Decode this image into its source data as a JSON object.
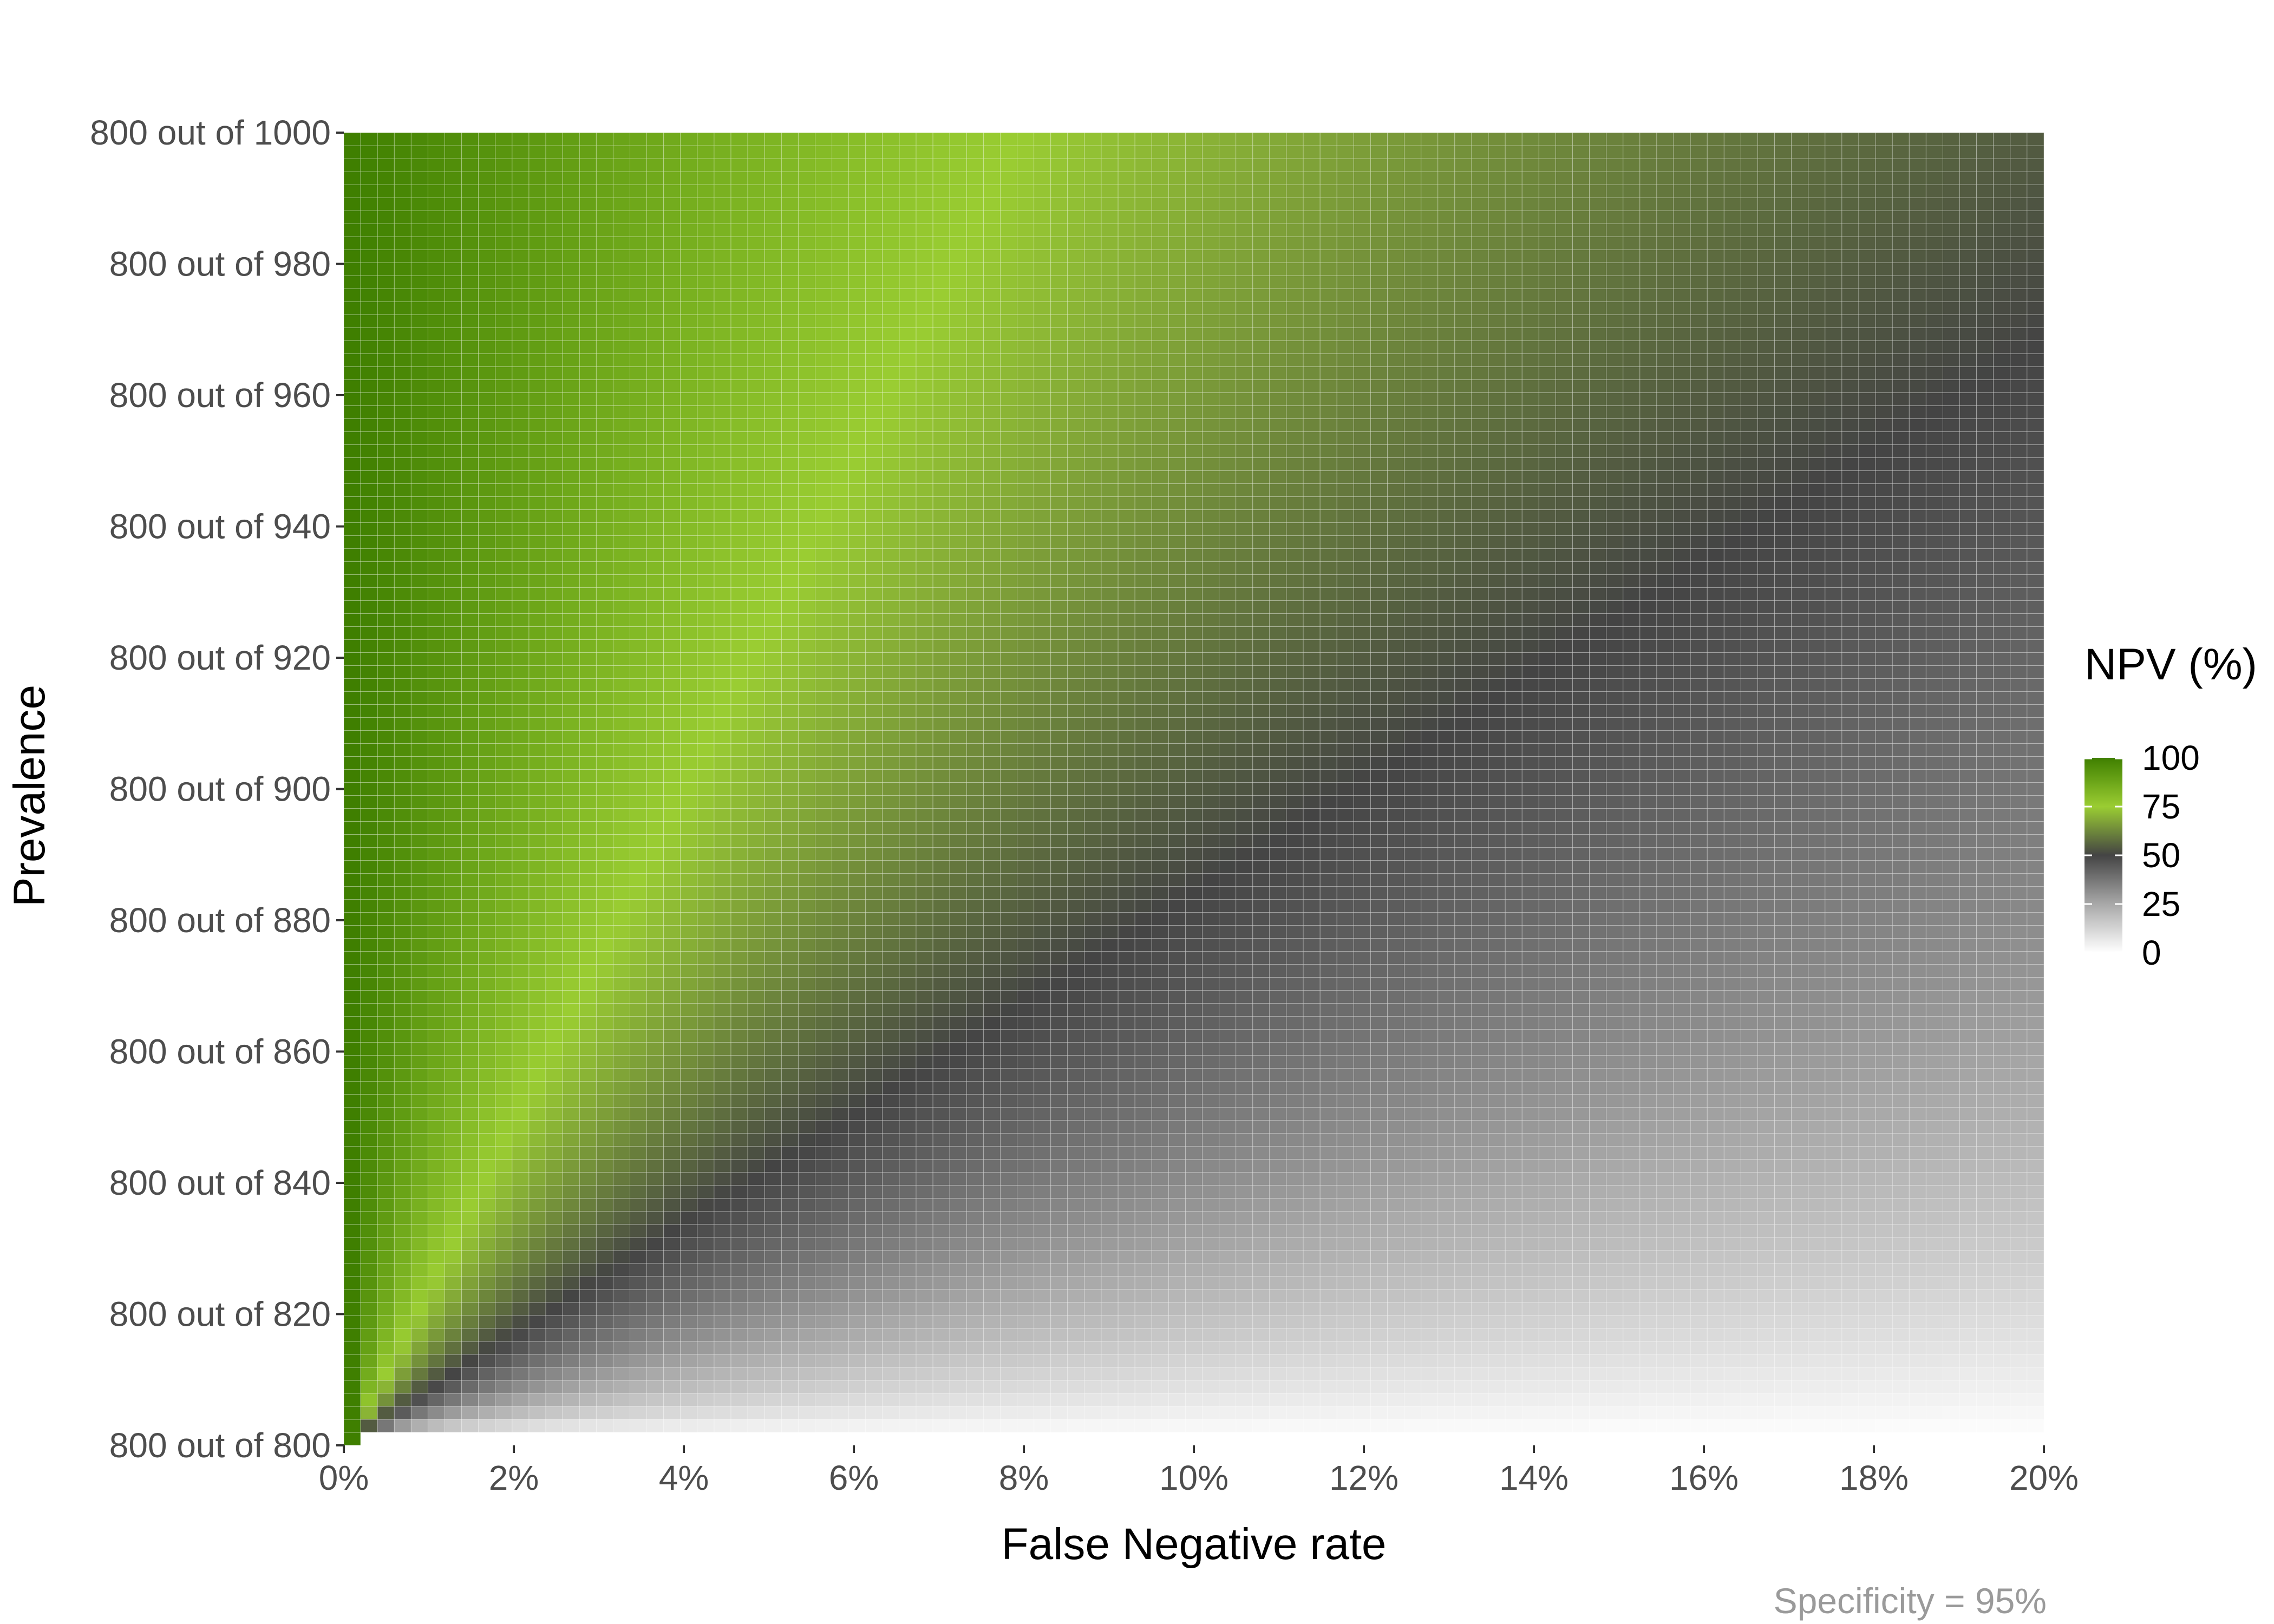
{
  "chart_data": {
    "type": "heatmap",
    "title": "",
    "xlabel": "False Negative rate",
    "ylabel": "Prevalence",
    "caption": "Specificity = 95%",
    "x_ticks": [
      "0%",
      "2%",
      "4%",
      "6%",
      "8%",
      "10%",
      "12%",
      "14%",
      "16%",
      "18%",
      "20%"
    ],
    "y_ticks": [
      "800 out of 800",
      "800 out of 820",
      "800 out of 840",
      "800 out of 860",
      "800 out of 880",
      "800 out of 900",
      "800 out of 920",
      "800 out of 940",
      "800 out of 960",
      "800 out of 980",
      "800 out of 1000"
    ],
    "x_range": [
      0,
      20
    ],
    "y_range": [
      800,
      1000
    ],
    "x_step": 0.2,
    "y_step": 2,
    "specificity": 0.95,
    "legend": {
      "title": "NPV (%)",
      "ticks": [
        "0",
        "25",
        "50",
        "75",
        "100"
      ],
      "position": "right"
    },
    "color_scale": [
      {
        "value": 0,
        "color": "#ffffff"
      },
      {
        "value": 25,
        "color": "#a8a8a8"
      },
      {
        "value": 50,
        "color": "#444444"
      },
      {
        "value": 75,
        "color": "#9acd32"
      },
      {
        "value": 100,
        "color": "#3f7f00"
      }
    ],
    "grid": false,
    "cell_border": "#ffffff"
  }
}
